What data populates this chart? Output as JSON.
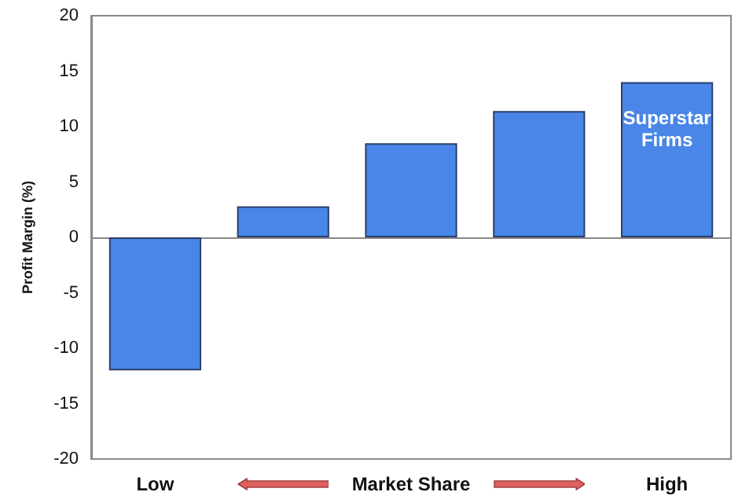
{
  "chart_data": {
    "type": "bar",
    "ylabel": "Profit Margin (%)",
    "categories": [
      "Low",
      null,
      "Market Share",
      null,
      "High"
    ],
    "values": [
      -12,
      2.8,
      8.5,
      11.4,
      14
    ],
    "color": "#4a86e8",
    "ylim": [
      -20,
      20
    ],
    "yticks": [
      -20,
      -15,
      -10,
      -5,
      0,
      5,
      10,
      15,
      20
    ],
    "annotations": [
      "Superstar Firms"
    ]
  }
}
